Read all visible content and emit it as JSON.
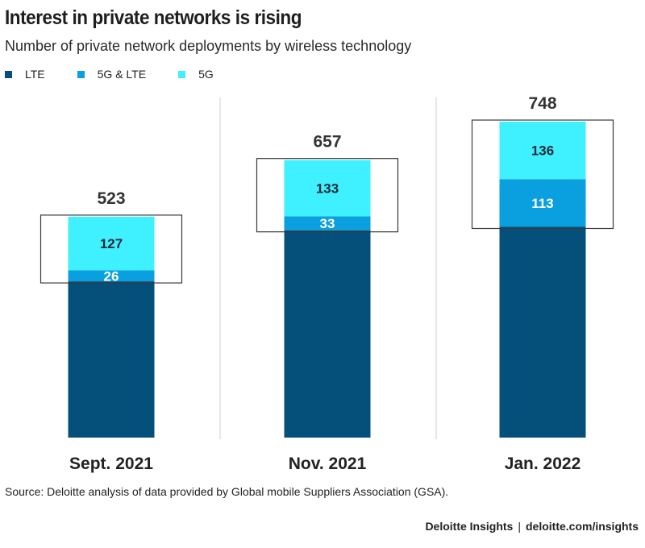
{
  "header": {
    "title": "Interest in private networks is rising",
    "subtitle": "Number of private network deployments by wireless technology"
  },
  "legend": [
    {
      "label": "LTE",
      "color": "#04507a"
    },
    {
      "label": "5G & LTE",
      "color": "#0a9fdf"
    },
    {
      "label": "5G",
      "color": "#3ff0ff"
    }
  ],
  "chart_data": {
    "type": "bar",
    "stacked": true,
    "categories": [
      "Sept. 2021",
      "Nov. 2021",
      "Jan. 2022"
    ],
    "totals": [
      "523",
      "657",
      "748"
    ],
    "series": [
      {
        "name": "LTE",
        "color": "#04507a",
        "values": [
          370,
          491,
          499
        ]
      },
      {
        "name": "5G & LTE",
        "color": "#0a9fdf",
        "values": [
          26,
          33,
          113
        ]
      },
      {
        "name": "5G",
        "color": "#3ff0ff",
        "values": [
          127,
          133,
          136
        ]
      }
    ],
    "value_labels": [
      [
        "",
        "26",
        "127"
      ],
      [
        "",
        "33",
        "133"
      ],
      [
        "",
        "113",
        "136"
      ]
    ],
    "title": "Interest in private networks is rising",
    "ylim": [
      0,
      748
    ],
    "grid": false,
    "legend_position": "top-left"
  },
  "footer": {
    "source": "Source: Deloitte analysis of data provided by Global mobile Suppliers Association (GSA).",
    "brand": "Deloitte Insights",
    "separator": "|",
    "url": "deloitte.com/insights"
  }
}
